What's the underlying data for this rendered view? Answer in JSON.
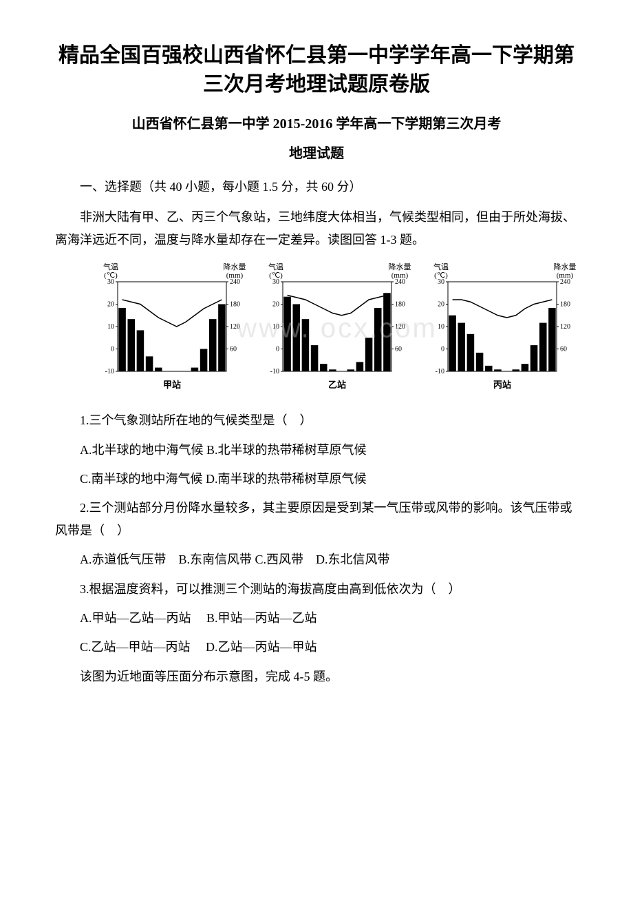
{
  "header": {
    "main_title": "精品全国百强校山西省怀仁县第一中学学年高一下学期第三次月考地理试题原卷版",
    "sub_title": "山西省怀仁县第一中学 2015-2016 学年高一下学期第三次月考",
    "subject_title": "地理试题"
  },
  "section1": {
    "header": "一、选择题（共 40 小题，每小题 1.5 分，共 60 分）",
    "intro_paragraph": "非洲大陆有甲、乙、丙三个气象站，三地纬度大体相当，气候类型相同，但由于所处海拔、离海洋远近不同，温度与降水量却存在一定差异。读图回答 1-3 题。"
  },
  "charts": {
    "type": "climate_bar_line",
    "stations": [
      "甲站",
      "乙站",
      "丙站"
    ],
    "width_each": 230,
    "height_each": 170,
    "background_color": "#ffffff",
    "axis_color": "#000000",
    "text_color": "#000000",
    "bar_color": "#000000",
    "line_color": "#000000",
    "left_axis_label": "气温",
    "left_axis_unit": "(℃)",
    "right_axis_label": "降水量",
    "right_axis_unit": "(mm)",
    "left_ticks": [
      -10,
      0,
      10,
      20,
      30
    ],
    "right_ticks": [
      60,
      120,
      180,
      240
    ],
    "label_fontsize": 11,
    "tick_fontsize": 10,
    "station_fontsize": 13,
    "months": 12,
    "jia": {
      "temp": [
        22,
        21,
        20,
        17,
        14,
        12,
        10,
        12,
        15,
        18,
        20,
        22
      ],
      "precip": [
        170,
        140,
        110,
        40,
        10,
        0,
        0,
        0,
        10,
        60,
        140,
        180
      ]
    },
    "yi": {
      "temp": [
        24,
        23,
        22,
        20,
        18,
        16,
        15,
        16,
        19,
        22,
        23,
        24
      ],
      "precip": [
        200,
        180,
        140,
        70,
        20,
        5,
        0,
        5,
        25,
        90,
        170,
        210
      ]
    },
    "bing": {
      "temp": [
        22,
        22,
        21,
        19,
        17,
        15,
        14,
        15,
        18,
        20,
        21,
        22
      ],
      "precip": [
        150,
        130,
        100,
        50,
        15,
        5,
        0,
        5,
        20,
        70,
        130,
        170
      ]
    }
  },
  "questions": {
    "q1": {
      "text": "1.三个气象测站所在地的气候类型是（　）",
      "line1": "A.北半球的地中海气候 B.北半球的热带稀树草原气候",
      "line2": "C.南半球的地中海气候 D.南半球的热带稀树草原气候"
    },
    "q2": {
      "text": "2.三个测站部分月份降水量较多，其主要原因是受到某一气压带或风带的影响。该气压带或风带是（　）",
      "opts": "A.赤道低气压带　B.东南信风带 C.西风带　D.东北信风带"
    },
    "q3": {
      "text": "3.根据温度资料，可以推测三个测站的海拔高度由高到低依次为（　）",
      "line1": "A.甲站—乙站—丙站　 B.甲站—丙站—乙站",
      "line2": "C.乙站—甲站—丙站　 D.乙站—丙站—甲站"
    },
    "q4_intro": "该图为近地面等压面分布示意图，完成 4-5 题。"
  },
  "watermark": "www.    ocx.com"
}
